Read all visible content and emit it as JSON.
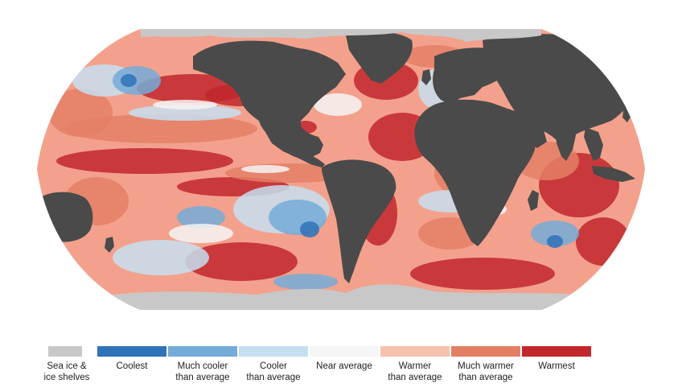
{
  "map": {
    "projection": "Robinson",
    "colors": {
      "land": "#4a4a4a",
      "sea_ice": "#c8c8c8",
      "ocean_base": "#f3a18c"
    }
  },
  "legend": {
    "items": [
      {
        "id": "sea-ice",
        "label": "Sea ice &\nice shelves",
        "color": "#c8c8c8"
      },
      {
        "id": "coolest",
        "label": "Coolest",
        "color": "#2f72b7"
      },
      {
        "id": "much-cooler",
        "label": "Much cooler\nthan average",
        "color": "#74abd8"
      },
      {
        "id": "cooler",
        "label": "Cooler\nthan average",
        "color": "#c5dff0"
      },
      {
        "id": "near-average",
        "label": "Near average",
        "color": "#f5f5f5"
      },
      {
        "id": "warmer",
        "label": "Warmer\nthan average",
        "color": "#f6c1ad"
      },
      {
        "id": "much-warmer",
        "label": "Much warmer\nthan average",
        "color": "#e47f66"
      },
      {
        "id": "warmest",
        "label": "Warmest",
        "color": "#c1272d"
      }
    ]
  }
}
